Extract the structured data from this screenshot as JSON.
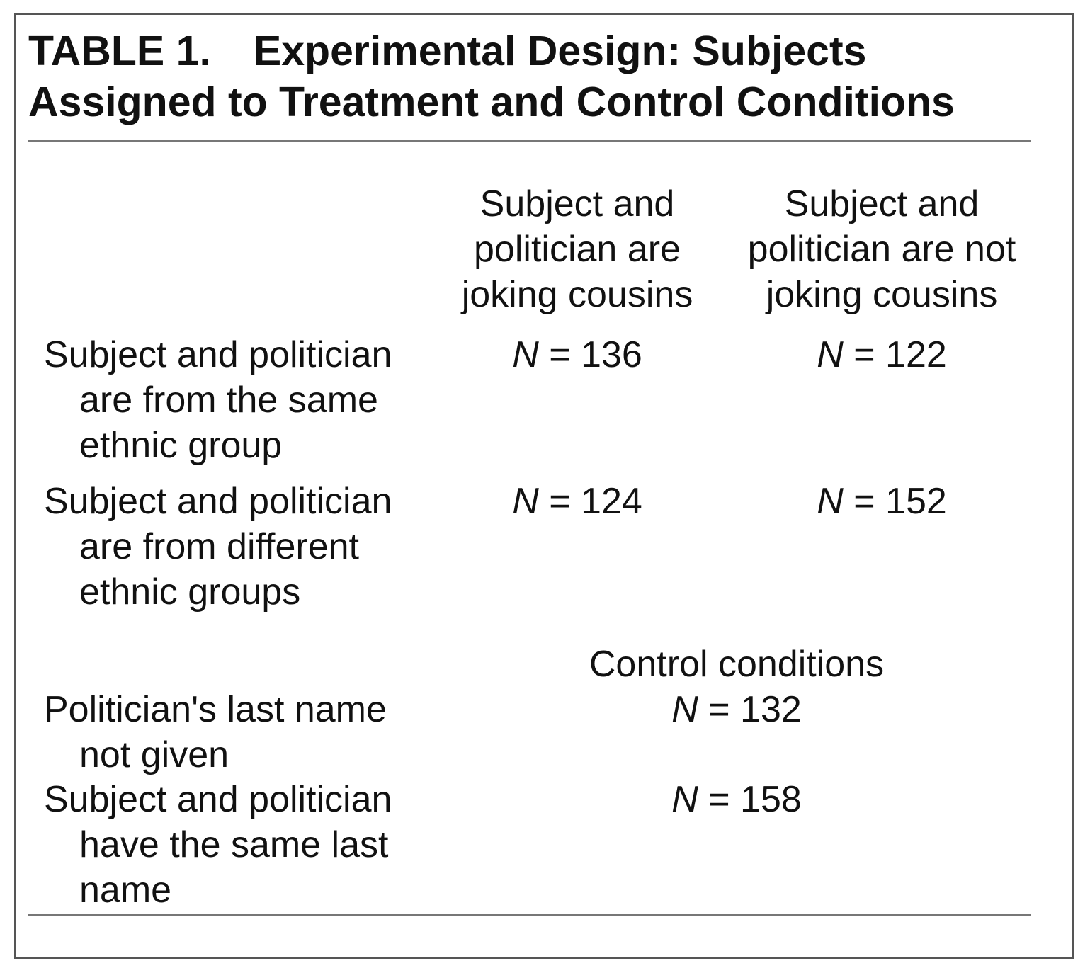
{
  "table": {
    "label": "TABLE 1.",
    "title": "Experimental Design: Subjects Assigned to Treatment and Control Conditions",
    "columns": [
      "Subject and\npolitician are\njoking cousins",
      "Subject and\npolitician are not\njoking cousins"
    ],
    "treatment_rows": [
      {
        "label_first": "Subject and politician",
        "label_rest": "are from the same ethnic group",
        "cells": [
          "136",
          "122"
        ]
      },
      {
        "label_first": "Subject and politician",
        "label_rest": "are from different ethnic groups",
        "cells": [
          "124",
          "152"
        ]
      }
    ],
    "control_header": "Control conditions",
    "control_rows": [
      {
        "label_first": "Politician's last name",
        "label_rest": "not given",
        "cell": "132"
      },
      {
        "label_first": "Subject and politician",
        "label_rest": "have the same last name",
        "cell": "158"
      }
    ],
    "n_symbol": "N",
    "equals": " = "
  }
}
